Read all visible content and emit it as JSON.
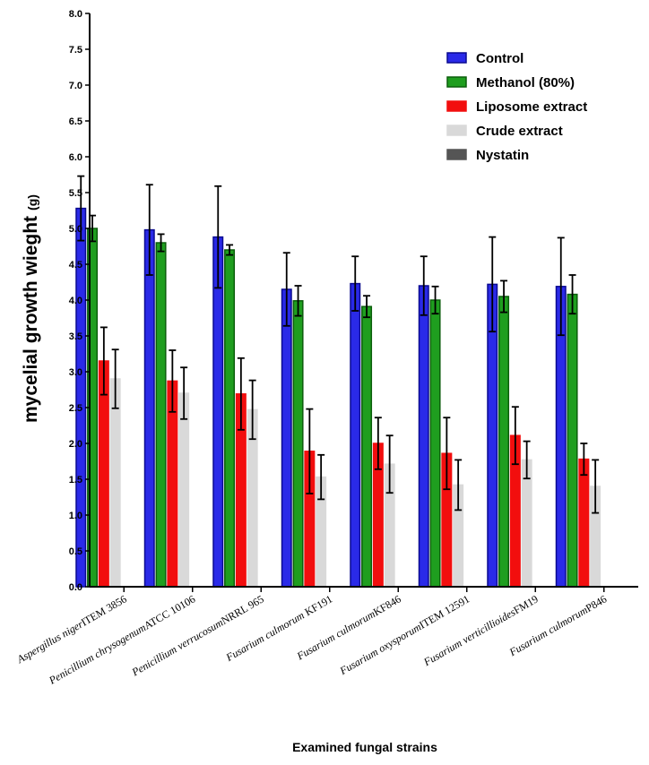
{
  "chart_data": {
    "type": "bar",
    "title": "",
    "xlabel": "Examined fungal strains",
    "ylabel": "mycelial growth wieght",
    "ylabel_unit": "(g)",
    "ylim": [
      0,
      8
    ],
    "yticks": [
      "0.0",
      "0.5",
      "1.0",
      "1.5",
      "2.0",
      "2.5",
      "3.0",
      "3.5",
      "4.0",
      "4.5",
      "5.0",
      "5.5",
      "6.0",
      "6.5",
      "7.0",
      "7.5",
      "8.0"
    ],
    "legend_position": "top-right",
    "categories": [
      {
        "name": "Aspergillus niger",
        "suffix": "ITEM 3856"
      },
      {
        "name": "Penicillium chrysogenum",
        "suffix": "ATCC 10106"
      },
      {
        "name": "Penicillium verrucosum",
        "suffix": "NRRL 965"
      },
      {
        "name": "Fusarium culmorum",
        "suffix": " KF191"
      },
      {
        "name": "Fusarium culmorum",
        "suffix": "KF846"
      },
      {
        "name": "Fusarium oxysporum",
        "suffix": "ITEM 12591"
      },
      {
        "name": "Fusarium verticillioides",
        "suffix": "FM19"
      },
      {
        "name": "Fusarium culmorum",
        "suffix": "P846"
      }
    ],
    "series": [
      {
        "name": "Control",
        "color": "#2a2ae8",
        "edge": "#0a0a90",
        "values": [
          5.28,
          4.98,
          4.88,
          4.15,
          4.23,
          4.2,
          4.22,
          4.19
        ],
        "errors": [
          0.45,
          0.63,
          0.71,
          0.51,
          0.38,
          0.41,
          0.66,
          0.68
        ]
      },
      {
        "name": "Methanol (80%)",
        "color": "#1f9e1f",
        "edge": "#0b5e0b",
        "values": [
          5.0,
          4.8,
          4.7,
          3.99,
          3.91,
          4.0,
          4.05,
          4.08
        ],
        "errors": [
          0.18,
          0.12,
          0.07,
          0.21,
          0.15,
          0.19,
          0.22,
          0.27
        ]
      },
      {
        "name": "Liposome extract",
        "color": "#f20e0e",
        "edge": "#f20e0e",
        "values": [
          3.15,
          2.87,
          2.69,
          1.89,
          2.0,
          1.86,
          2.11,
          1.78
        ],
        "errors": [
          0.47,
          0.43,
          0.5,
          0.59,
          0.36,
          0.5,
          0.4,
          0.22
        ]
      },
      {
        "name": "Crude extract",
        "color": "#d9d9d9",
        "edge": "#d9d9d9",
        "values": [
          2.9,
          2.7,
          2.47,
          1.53,
          1.71,
          1.42,
          1.77,
          1.4
        ],
        "errors": [
          0.41,
          0.36,
          0.41,
          0.31,
          0.4,
          0.35,
          0.26,
          0.37
        ]
      },
      {
        "name": "Nystatin",
        "color": "#555555",
        "edge": "#555555",
        "values": [
          0,
          0,
          0,
          0,
          0,
          0,
          0,
          0
        ],
        "errors": [
          0,
          0,
          0,
          0,
          0,
          0,
          0,
          0
        ]
      }
    ]
  }
}
